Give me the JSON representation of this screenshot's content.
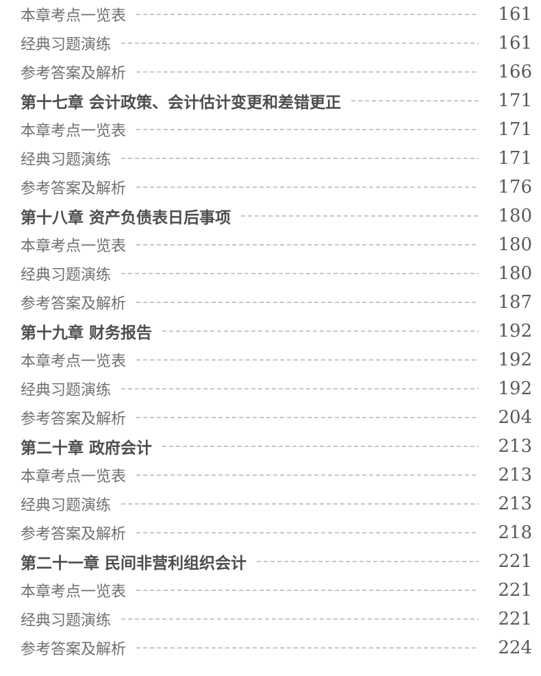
{
  "toc": {
    "colors": {
      "chapter_text": "#4d4d4d",
      "item_text": "#6f6f6f",
      "page_number_text": "#595959",
      "leader_dash": "#c7c7c7",
      "background": "#ffffff"
    },
    "rows": [
      {
        "type": "item",
        "label": "本章考点一览表",
        "page": "161"
      },
      {
        "type": "item",
        "label": "经典习题演练",
        "page": "161"
      },
      {
        "type": "item",
        "label": "参考答案及解析",
        "page": "166"
      },
      {
        "type": "chapter",
        "label": "第十七章 会计政策、会计估计变更和差错更正",
        "page": "171"
      },
      {
        "type": "item",
        "label": "本章考点一览表",
        "page": "171"
      },
      {
        "type": "item",
        "label": "经典习题演练",
        "page": "171"
      },
      {
        "type": "item",
        "label": "参考答案及解析",
        "page": "176"
      },
      {
        "type": "chapter",
        "label": "第十八章 资产负债表日后事项",
        "page": "180"
      },
      {
        "type": "item",
        "label": "本章考点一览表",
        "page": "180"
      },
      {
        "type": "item",
        "label": "经典习题演练",
        "page": "180"
      },
      {
        "type": "item",
        "label": "参考答案及解析",
        "page": "187"
      },
      {
        "type": "chapter",
        "label": "第十九章 财务报告",
        "page": "192"
      },
      {
        "type": "item",
        "label": "本章考点一览表",
        "page": "192"
      },
      {
        "type": "item",
        "label": "经典习题演练",
        "page": "192"
      },
      {
        "type": "item",
        "label": "参考答案及解析",
        "page": "204"
      },
      {
        "type": "chapter",
        "label": "第二十章 政府会计",
        "page": "213"
      },
      {
        "type": "item",
        "label": "本章考点一览表",
        "page": "213"
      },
      {
        "type": "item",
        "label": "经典习题演练",
        "page": "213"
      },
      {
        "type": "item",
        "label": "参考答案及解析",
        "page": "218"
      },
      {
        "type": "chapter",
        "label": "第二十一章 民间非营利组织会计",
        "page": "221"
      },
      {
        "type": "item",
        "label": "本章考点一览表",
        "page": "221"
      },
      {
        "type": "item",
        "label": "经典习题演练",
        "page": "221"
      },
      {
        "type": "item",
        "label": "参考答案及解析",
        "page": "224"
      }
    ]
  }
}
